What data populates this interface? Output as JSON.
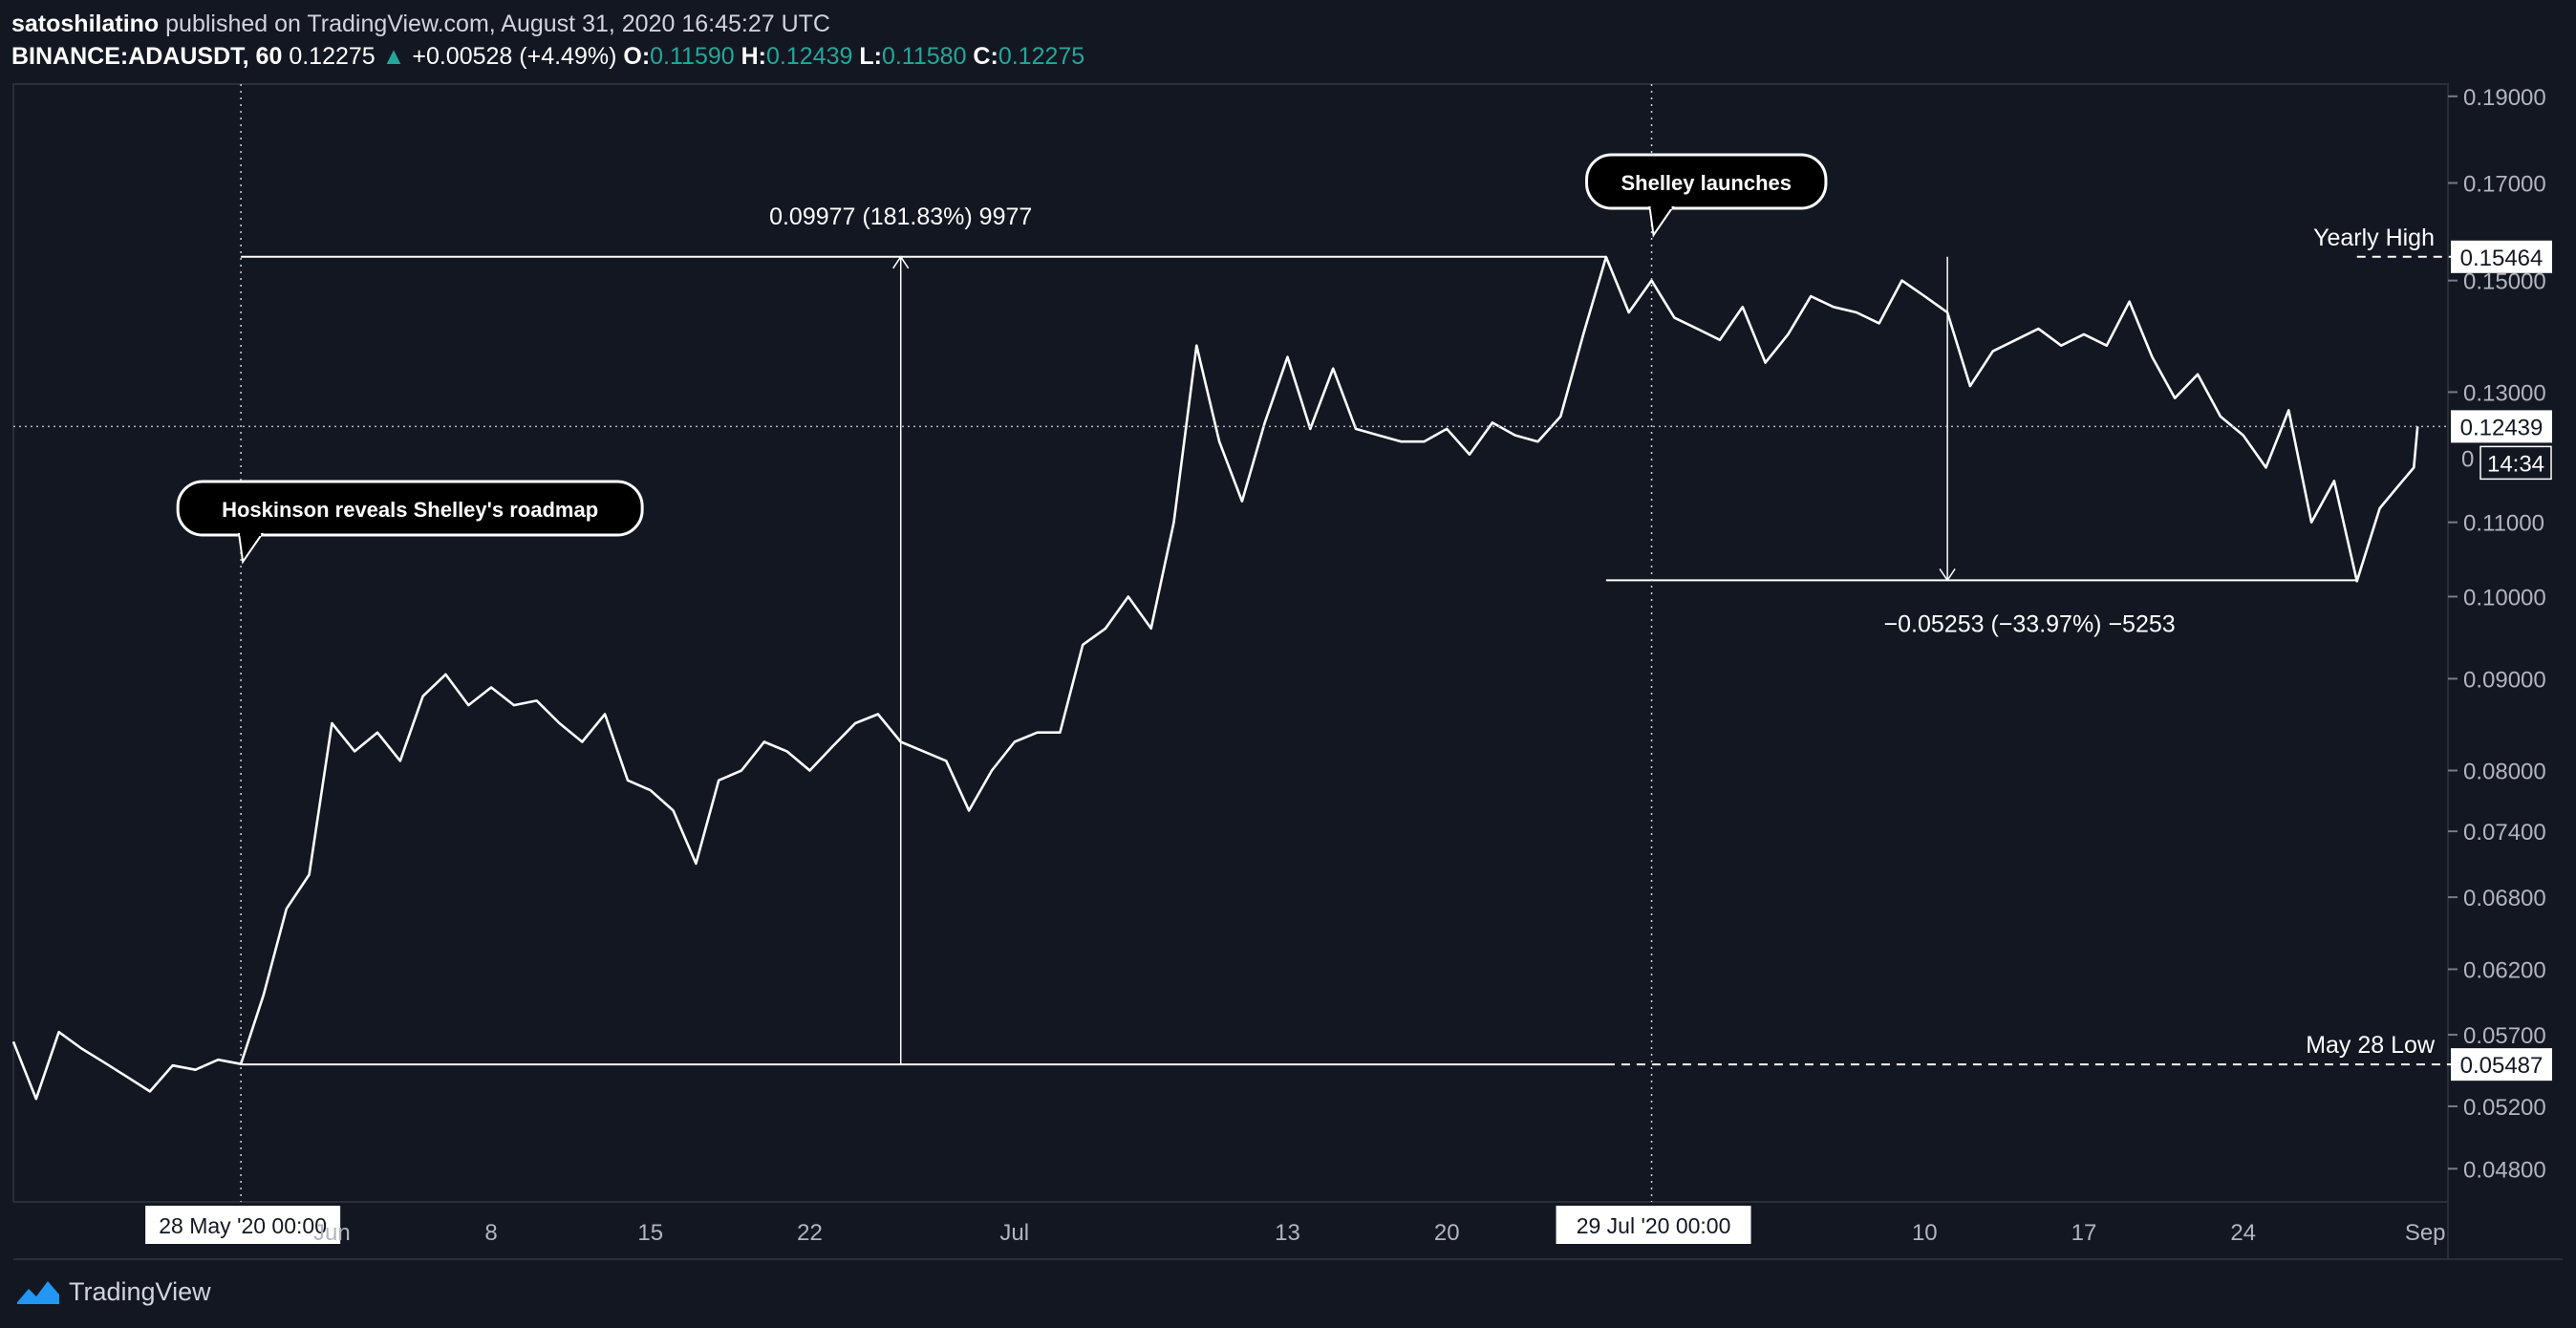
{
  "header": {
    "publisher": "satoshilatino",
    "published_text": "published on TradingView.com, August 31, 2020 16:45:27 UTC",
    "symbol": "BINANCE:ADAUSDT, 60",
    "last": "0.12275",
    "change_arrow": "▲",
    "change": "+0.00528 (+4.49%)",
    "open_label": "O:",
    "open": "0.11590",
    "high_label": "H:",
    "high": "0.12439",
    "low_label": "L:",
    "low": "0.11580",
    "close_label": "C:",
    "close": "0.12275"
  },
  "footer": {
    "brand": "TradingView",
    "logo_icon": "tradingview-logo-icon"
  },
  "colors": {
    "background": "#131722",
    "line": "#ffffff",
    "grid": "#2a2e39",
    "up": "#26a69a",
    "axis_text": "#b2b5be"
  },
  "chart_data": {
    "type": "line",
    "title": "",
    "xlabel": "",
    "ylabel": "",
    "log_scale": true,
    "ylim": [
      0.046,
      0.193
    ],
    "xlim_days": [
      "2020-05-18",
      "2020-09-02"
    ],
    "y_ticks": [
      "0.19000",
      "0.17000",
      "0.15000",
      "0.13000",
      "0.11000",
      "0.10000",
      "0.09000",
      "0.08000",
      "0.07400",
      "0.06800",
      "0.06200",
      "0.05700",
      "0.05200",
      "0.04800"
    ],
    "x_ticks": [
      {
        "date": "2020-06-01",
        "label": "Jun"
      },
      {
        "date": "2020-06-08",
        "label": "8"
      },
      {
        "date": "2020-06-15",
        "label": "15"
      },
      {
        "date": "2020-06-22",
        "label": "22"
      },
      {
        "date": "2020-07-01",
        "label": "Jul"
      },
      {
        "date": "2020-07-13",
        "label": "13"
      },
      {
        "date": "2020-07-20",
        "label": "20"
      },
      {
        "date": "2020-08-10",
        "label": "10"
      },
      {
        "date": "2020-08-17",
        "label": "17"
      },
      {
        "date": "2020-08-24",
        "label": "24"
      },
      {
        "date": "2020-09-01",
        "label": "Sep"
      }
    ],
    "series": [
      {
        "name": "",
        "points": [
          [
            "2020-05-18",
            0.0565
          ],
          [
            "2020-05-19",
            0.0525
          ],
          [
            "2020-05-20",
            0.0572
          ],
          [
            "2020-05-21",
            0.056
          ],
          [
            "2020-05-22",
            0.055
          ],
          [
            "2020-05-23",
            0.054
          ],
          [
            "2020-05-24",
            0.053
          ],
          [
            "2020-05-25",
            0.0548
          ],
          [
            "2020-05-26",
            0.0545
          ],
          [
            "2020-05-27",
            0.0552
          ],
          [
            "2020-05-28",
            0.0549
          ],
          [
            "2020-05-29",
            0.06
          ],
          [
            "2020-05-30",
            0.067
          ],
          [
            "2020-05-31",
            0.07
          ],
          [
            "2020-06-01",
            0.085
          ],
          [
            "2020-06-02",
            0.082
          ],
          [
            "2020-06-03",
            0.084
          ],
          [
            "2020-06-04",
            0.081
          ],
          [
            "2020-06-05",
            0.088
          ],
          [
            "2020-06-06",
            0.0905
          ],
          [
            "2020-06-07",
            0.087
          ],
          [
            "2020-06-08",
            0.089
          ],
          [
            "2020-06-09",
            0.087
          ],
          [
            "2020-06-10",
            0.0875
          ],
          [
            "2020-06-11",
            0.085
          ],
          [
            "2020-06-12",
            0.083
          ],
          [
            "2020-06-13",
            0.086
          ],
          [
            "2020-06-14",
            0.079
          ],
          [
            "2020-06-15",
            0.078
          ],
          [
            "2020-06-16",
            0.076
          ],
          [
            "2020-06-17",
            0.071
          ],
          [
            "2020-06-18",
            0.079
          ],
          [
            "2020-06-19",
            0.08
          ],
          [
            "2020-06-20",
            0.083
          ],
          [
            "2020-06-21",
            0.082
          ],
          [
            "2020-06-22",
            0.08
          ],
          [
            "2020-06-23",
            0.0825
          ],
          [
            "2020-06-24",
            0.085
          ],
          [
            "2020-06-25",
            0.086
          ],
          [
            "2020-06-26",
            0.083
          ],
          [
            "2020-06-27",
            0.082
          ],
          [
            "2020-06-28",
            0.081
          ],
          [
            "2020-06-29",
            0.076
          ],
          [
            "2020-06-30",
            0.08
          ],
          [
            "2020-07-01",
            0.083
          ],
          [
            "2020-07-02",
            0.084
          ],
          [
            "2020-07-03",
            0.084
          ],
          [
            "2020-07-04",
            0.094
          ],
          [
            "2020-07-05",
            0.096
          ],
          [
            "2020-07-06",
            0.1
          ],
          [
            "2020-07-07",
            0.096
          ],
          [
            "2020-07-08",
            0.11
          ],
          [
            "2020-07-09",
            0.138
          ],
          [
            "2020-07-10",
            0.122
          ],
          [
            "2020-07-11",
            0.113
          ],
          [
            "2020-07-12",
            0.125
          ],
          [
            "2020-07-13",
            0.136
          ],
          [
            "2020-07-14",
            0.124
          ],
          [
            "2020-07-15",
            0.134
          ],
          [
            "2020-07-16",
            0.124
          ],
          [
            "2020-07-17",
            0.123
          ],
          [
            "2020-07-18",
            0.122
          ],
          [
            "2020-07-19",
            0.122
          ],
          [
            "2020-07-20",
            0.124
          ],
          [
            "2020-07-21",
            0.12
          ],
          [
            "2020-07-22",
            0.125
          ],
          [
            "2020-07-23",
            0.123
          ],
          [
            "2020-07-24",
            0.122
          ],
          [
            "2020-07-25",
            0.126
          ],
          [
            "2020-07-26",
            0.14
          ],
          [
            "2020-07-27",
            0.1546
          ],
          [
            "2020-07-28",
            0.144
          ],
          [
            "2020-07-29",
            0.15
          ],
          [
            "2020-07-30",
            0.143
          ],
          [
            "2020-07-31",
            0.141
          ],
          [
            "2020-08-01",
            0.139
          ],
          [
            "2020-08-02",
            0.145
          ],
          [
            "2020-08-03",
            0.135
          ],
          [
            "2020-08-04",
            0.14
          ],
          [
            "2020-08-05",
            0.147
          ],
          [
            "2020-08-06",
            0.145
          ],
          [
            "2020-08-07",
            0.144
          ],
          [
            "2020-08-08",
            0.142
          ],
          [
            "2020-08-09",
            0.15
          ],
          [
            "2020-08-10",
            0.147
          ],
          [
            "2020-08-11",
            0.144
          ],
          [
            "2020-08-12",
            0.131
          ],
          [
            "2020-08-13",
            0.137
          ],
          [
            "2020-08-14",
            0.139
          ],
          [
            "2020-08-15",
            0.141
          ],
          [
            "2020-08-16",
            0.138
          ],
          [
            "2020-08-17",
            0.14
          ],
          [
            "2020-08-18",
            0.138
          ],
          [
            "2020-08-19",
            0.146
          ],
          [
            "2020-08-20",
            0.136
          ],
          [
            "2020-08-21",
            0.129
          ],
          [
            "2020-08-22",
            0.133
          ],
          [
            "2020-08-23",
            0.126
          ],
          [
            "2020-08-24",
            0.123
          ],
          [
            "2020-08-25",
            0.118
          ],
          [
            "2020-08-26",
            0.127
          ],
          [
            "2020-08-27",
            0.11
          ],
          [
            "2020-08-28",
            0.116
          ],
          [
            "2020-08-29",
            0.102
          ],
          [
            "2020-08-30",
            0.112
          ],
          [
            "2020-08-31",
            0.116
          ],
          [
            "2020-08-31T12:00",
            0.118
          ],
          [
            "2020-08-31T16:00",
            0.1244
          ]
        ]
      }
    ],
    "price_labels": [
      {
        "value": 0.15464,
        "text": "0.15464",
        "caption": "Yearly High"
      },
      {
        "value": 0.12439,
        "text": "0.12439",
        "caption": ""
      },
      {
        "value": 0.05487,
        "text": "0.05487",
        "caption": "May 28 Low"
      }
    ],
    "countdown": {
      "text": "14:34",
      "partial_label": "0"
    },
    "time_markers": [
      {
        "date": "2020-05-28",
        "label": "28 May '20   00:00"
      },
      {
        "date": "2020-07-29",
        "label": "29 Jul '20   00:00"
      }
    ],
    "callouts": [
      {
        "date": "2020-05-28",
        "text": "Hoskinson reveals Shelley's roadmap"
      },
      {
        "date": "2020-07-29",
        "text": "Shelley launches"
      }
    ],
    "measures": [
      {
        "from_date": "2020-05-28",
        "to_date": "2020-07-27",
        "arrow_date": "2020-06-26",
        "from_value": 0.05487,
        "to_value": 0.15464,
        "text": "0.09977 (181.83%) 9977"
      },
      {
        "from_date": "2020-07-27",
        "to_date": "2020-08-29",
        "arrow_date": "2020-08-11",
        "from_value": 0.15464,
        "to_value": 0.10211,
        "text": "−0.05253 (−33.97%) −5253"
      }
    ]
  }
}
